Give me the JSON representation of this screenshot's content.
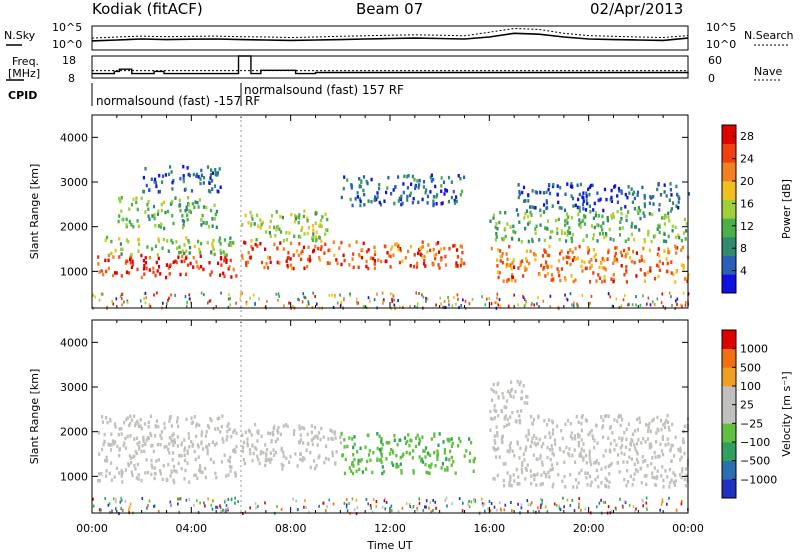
{
  "header": {
    "station": "Kodiak (fitACF)",
    "beam": "Beam 07",
    "date": "02/Apr/2013"
  },
  "top_labels": {
    "nsky": "N.Sky",
    "nsearch": "N.Search",
    "freq_line1": "Freq.",
    "freq_line2": "[MHz]",
    "nave": "Nave",
    "cpid": "CPID",
    "nsky_ticks": [
      "10^5",
      "10^0"
    ],
    "nsearch_ticks": [
      "10^5",
      "10^0"
    ],
    "freq_ticks": [
      "18",
      "8"
    ],
    "nave_ticks": [
      "60",
      "0"
    ],
    "cpid_a": "normalsound (fast) -157 RF",
    "cpid_b": "normalsound (fast) 157 RF"
  },
  "colors": {
    "power": [
      "#1010e0",
      "#2a60b8",
      "#2f8a6e",
      "#4ab04a",
      "#9ed03a",
      "#f0c020",
      "#f08020",
      "#f04010",
      "#e00000"
    ],
    "velocity": [
      "#2030c0",
      "#2a70b0",
      "#30a060",
      "#60c040",
      "#c0c0bc",
      "#c0c0bc",
      "#f0a020",
      "#f07010",
      "#e00000"
    ]
  },
  "chart_data": [
    {
      "type": "line",
      "name": "nsky-nsearch",
      "yscale": "log",
      "ylim": [
        1,
        100000
      ],
      "xlim": [
        0,
        24
      ],
      "series": [
        {
          "name": "N.Sky",
          "x": [
            0,
            1,
            2,
            3,
            4,
            5,
            6,
            7,
            8,
            9,
            10,
            11,
            12,
            13,
            14,
            15,
            16,
            17,
            18,
            19,
            20,
            21,
            22,
            23,
            24
          ],
          "values": [
            80,
            120,
            200,
            150,
            180,
            200,
            150,
            120,
            100,
            120,
            150,
            200,
            250,
            300,
            250,
            200,
            500,
            3000,
            2000,
            500,
            200,
            150,
            120,
            100,
            300
          ]
        },
        {
          "name": "N.Search",
          "x": [
            0,
            1,
            2,
            3,
            4,
            5,
            6,
            7,
            8,
            9,
            10,
            11,
            12,
            13,
            14,
            15,
            16,
            17,
            18,
            19,
            20,
            21,
            22,
            23,
            24
          ],
          "values": [
            300,
            500,
            800,
            600,
            700,
            800,
            600,
            500,
            400,
            500,
            700,
            900,
            1200,
            1500,
            1200,
            900,
            5000,
            30000,
            20000,
            3000,
            1000,
            700,
            500,
            400,
            1000
          ]
        }
      ]
    },
    {
      "type": "line",
      "name": "frequency-nave",
      "xlim": [
        0,
        24
      ],
      "series": [
        {
          "name": "Freq.",
          "unit": "MHz",
          "ylim": [
            8,
            18
          ],
          "step_x": [
            0,
            0.9,
            1.1,
            1.6,
            2.5,
            2.9,
            5.9,
            6.4,
            6.8,
            8.2,
            9.0,
            24
          ],
          "values": [
            10,
            11,
            12,
            10,
            11,
            10,
            18,
            10,
            11.5,
            10,
            10.5,
            10
          ]
        },
        {
          "name": "Nave",
          "ylim": [
            0,
            60
          ],
          "step_x": [
            0,
            5.8,
            6.2,
            12,
            15,
            16,
            23.8,
            24
          ],
          "values": [
            20,
            20,
            20,
            20,
            20,
            20,
            20,
            60
          ]
        }
      ]
    },
    {
      "type": "heatmap",
      "name": "power",
      "xlabel": "",
      "ylabel": "Slant Range [km]",
      "xlim": [
        0,
        24
      ],
      "ylim": [
        180,
        4500
      ],
      "yticks": [
        1000,
        2000,
        3000,
        4000
      ],
      "colorbar": {
        "label": "Power [dB]",
        "range": [
          0,
          30
        ],
        "ticks": [
          4,
          8,
          12,
          16,
          20,
          24,
          28
        ]
      },
      "echo_bands": [
        {
          "t0": 0.2,
          "t1": 5.8,
          "r0": 900,
          "r1": 1400,
          "value": 26
        },
        {
          "t0": 0.5,
          "t1": 5.8,
          "r0": 1400,
          "r1": 1800,
          "value": 14
        },
        {
          "t0": 1.0,
          "t1": 5.0,
          "r0": 2000,
          "r1": 2700,
          "value": 12
        },
        {
          "t0": 2.0,
          "t1": 5.2,
          "r0": 2800,
          "r1": 3400,
          "value": 6
        },
        {
          "t0": 6.0,
          "t1": 15.0,
          "r0": 1100,
          "r1": 1700,
          "value": 24
        },
        {
          "t0": 6.0,
          "t1": 9.5,
          "r0": 1700,
          "r1": 2400,
          "value": 14
        },
        {
          "t0": 10.0,
          "t1": 15.0,
          "r0": 2500,
          "r1": 3200,
          "value": 6
        },
        {
          "t0": 16.0,
          "t1": 24.0,
          "r0": 800,
          "r1": 1600,
          "value": 22
        },
        {
          "t0": 16.0,
          "t1": 24.0,
          "r0": 1700,
          "r1": 2400,
          "value": 12
        },
        {
          "t0": 17.0,
          "t1": 24.0,
          "r0": 2400,
          "r1": 3000,
          "value": 5
        }
      ]
    },
    {
      "type": "heatmap",
      "name": "velocity",
      "xlabel": "Time UT",
      "ylabel": "Slant Range [km]",
      "xlim": [
        0,
        24
      ],
      "ylim": [
        180,
        4500
      ],
      "yticks": [
        1000,
        2000,
        3000,
        4000
      ],
      "xticks": [
        "00:00",
        "04:00",
        "08:00",
        "12:00",
        "16:00",
        "20:00",
        "00:00"
      ],
      "colorbar": {
        "label": "Velocity [m s⁻¹]",
        "range": [
          -1200,
          1200
        ],
        "ticks": [
          "1000",
          "500",
          "100",
          "25",
          "−25",
          "−100",
          "−500",
          "−1000"
        ]
      },
      "echo_bands": [
        {
          "t0": 0.2,
          "t1": 5.8,
          "r0": 900,
          "r1": 2400,
          "value": 0
        },
        {
          "t0": 6.0,
          "t1": 10.0,
          "r0": 1200,
          "r1": 2200,
          "value": 150
        },
        {
          "t0": 10.0,
          "t1": 15.5,
          "r0": 1100,
          "r1": 2000,
          "value": -300
        },
        {
          "t0": 16.0,
          "t1": 24.0,
          "r0": 800,
          "r1": 2400,
          "value": 0
        },
        {
          "t0": 16.0,
          "t1": 17.5,
          "r0": 2400,
          "r1": 3200,
          "value": 150
        }
      ]
    }
  ]
}
